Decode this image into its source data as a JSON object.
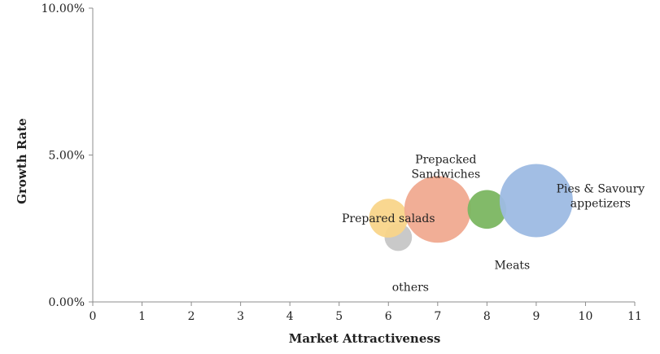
{
  "chart_data": {
    "type": "scatter",
    "subtype": "bubble",
    "xlabel": "Market Attractiveness",
    "ylabel": "Growth Rate",
    "xlim": [
      0,
      11
    ],
    "ylim": [
      0,
      10
    ],
    "x_ticks": [
      "0",
      "1",
      "2",
      "3",
      "4",
      "5",
      "6",
      "7",
      "8",
      "9",
      "10",
      "11"
    ],
    "y_ticks": [
      {
        "value": 0,
        "label": "0.00%"
      },
      {
        "value": 5,
        "label": "5.00%"
      },
      {
        "value": 10,
        "label": "10.00%"
      }
    ],
    "grid": false,
    "series": [
      {
        "label_lines": [
          "others"
        ],
        "x": 6.2,
        "y": 2.2,
        "relative_size": 0.14,
        "color": "#c6c6c6"
      },
      {
        "label_lines": [
          "Prepared salads"
        ],
        "x": 6.0,
        "y": 2.85,
        "relative_size": 0.28,
        "color": "#f9d58a"
      },
      {
        "label_lines": [
          "Prepacked",
          "Sandwiches"
        ],
        "x": 7.0,
        "y": 3.15,
        "relative_size": 0.83,
        "color": "#f0aa90"
      },
      {
        "label_lines": [
          "Meats"
        ],
        "x": 8.0,
        "y": 3.15,
        "relative_size": 0.28,
        "color": "#7bb661"
      },
      {
        "label_lines": [
          "Pies & Savoury",
          "appetizers"
        ],
        "x": 9.0,
        "y": 3.45,
        "relative_size": 1.0,
        "color": "#9dbbe3"
      }
    ]
  }
}
